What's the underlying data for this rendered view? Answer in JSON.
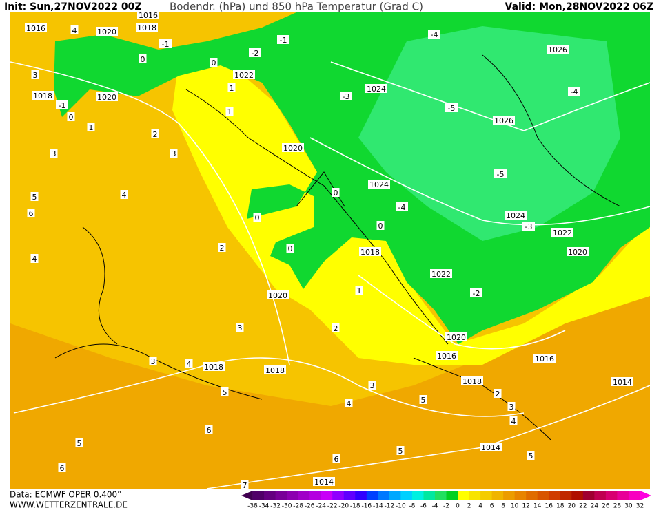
{
  "header": {
    "init": "Init: Sun,27NOV2022 00Z",
    "title": "Bodendr. (hPa) und 850 hPa Temperatur (Grad C)",
    "valid": "Valid: Mon,28NOV2022 06Z"
  },
  "footer": {
    "data": "Data: ECMWF OPER 0.400°",
    "site": "WWW.WETTERZENTRALE.DE"
  },
  "legend": {
    "labels": [
      "-38",
      "-34",
      "-32",
      "-30",
      "-28",
      "-26",
      "-24",
      "-22",
      "-20",
      "-18",
      "-16",
      "-14",
      "-12",
      "-10",
      "-8",
      "-6",
      "-4",
      "-2",
      "0",
      "2",
      "4",
      "6",
      "8",
      "10",
      "12",
      "14",
      "16",
      "18",
      "20",
      "22",
      "24",
      "26",
      "28",
      "30",
      "32"
    ],
    "colors": [
      "#400050",
      "#500068",
      "#640080",
      "#780098",
      "#8c00b0",
      "#a000c8",
      "#b400e0",
      "#c800f8",
      "#9000ff",
      "#6000ff",
      "#3000ff",
      "#0040ff",
      "#0078ff",
      "#00a8ff",
      "#00d0ff",
      "#00f0e0",
      "#00e8a0",
      "#20e060",
      "#00d020",
      "#ffff00",
      "#f8e400",
      "#f4cc00",
      "#f0b400",
      "#ec9c00",
      "#e88400",
      "#e06c00",
      "#d85400",
      "#d03c00",
      "#c02800",
      "#b01000",
      "#a00030",
      "#c00050",
      "#d80070",
      "#e80098",
      "#f800c0",
      "#ff00e0"
    ]
  },
  "isobar_labels": [
    "1016",
    "1020",
    "1018",
    "1016",
    "1022",
    "1018",
    "1020",
    "1024",
    "1026",
    "1026",
    "1020",
    "1024",
    "1024",
    "1022",
    "1020",
    "1018",
    "1022",
    "1020",
    "1020",
    "1016",
    "1016",
    "1018",
    "1018",
    "1018",
    "1014",
    "1014",
    "1014"
  ],
  "temperature_labels": [
    "-1",
    "-2",
    "-1",
    "-4",
    "-4",
    "-3",
    "-5",
    "-5",
    "-4",
    "-3",
    "-2",
    "-1",
    "0",
    "0",
    "0",
    "1",
    "2",
    "3",
    "3",
    "4",
    "5",
    "6",
    "4",
    "2",
    "0",
    "0",
    "0",
    "0",
    "1",
    "2",
    "3",
    "3",
    "4",
    "5",
    "3",
    "4",
    "5",
    "2",
    "3",
    "4",
    "5",
    "6",
    "5",
    "6",
    "6",
    "5",
    "7",
    "1",
    "1",
    "4",
    "3"
  ]
}
